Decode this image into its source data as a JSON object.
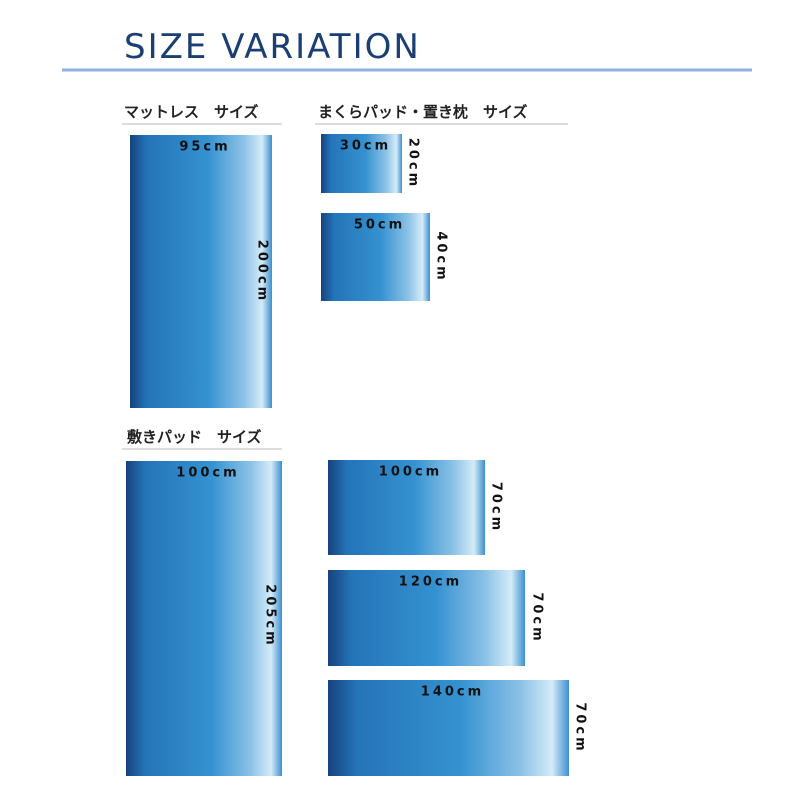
{
  "title": "SIZE VARIATION",
  "sections": [
    {
      "heading": "マットレス　サイズ",
      "items": [
        {
          "width": "95cm",
          "length": "200cm"
        }
      ]
    },
    {
      "heading": "まくらパッド・置き枕　サイズ",
      "items": [
        {
          "width": "30cm",
          "length": "20cm"
        },
        {
          "width": "50cm",
          "length": "40cm"
        }
      ]
    },
    {
      "heading": "敷きパッド　サイズ",
      "items": [
        {
          "width": "100cm",
          "length": "205cm"
        }
      ]
    },
    {
      "items": [
        {
          "width": "100cm",
          "length": "70cm"
        },
        {
          "width": "120cm",
          "length": "70cm"
        },
        {
          "width": "140cm",
          "length": "70cm"
        }
      ]
    }
  ]
}
